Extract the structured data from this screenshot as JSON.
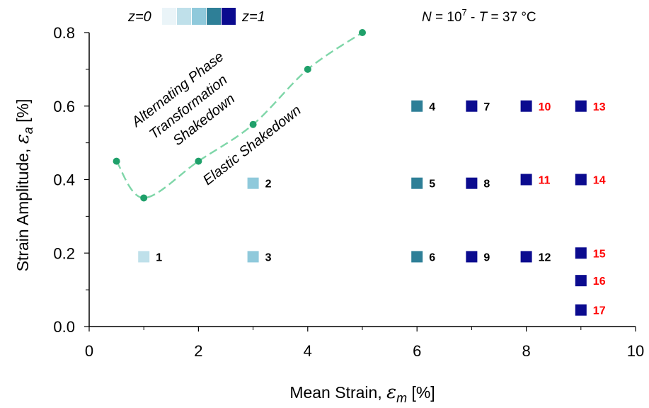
{
  "chart_data": {
    "type": "scatter",
    "title": "",
    "xlabel": "Mean Strain,",
    "xlabel_symbol": "ε",
    "xlabel_sub": "m",
    "xlabel_unit": "[%]",
    "ylabel": "Strain Amplitude,",
    "ylabel_symbol": "ε",
    "ylabel_sub": "a",
    "ylabel_unit": "[%]",
    "xlim": [
      0,
      10
    ],
    "ylim": [
      0,
      0.8
    ],
    "xticks": [
      "0",
      "2",
      "4",
      "6",
      "8",
      "10"
    ],
    "yticks": [
      "0.0",
      "0.2",
      "0.4",
      "0.6",
      "0.8"
    ],
    "grid": false,
    "boundary": {
      "color": "#7ed6a8",
      "marker_color": "#1fa06a",
      "style": "dashed",
      "points": [
        {
          "x": 0.5,
          "y": 0.45
        },
        {
          "x": 1,
          "y": 0.35
        },
        {
          "x": 2,
          "y": 0.45
        },
        {
          "x": 3,
          "y": 0.55
        },
        {
          "x": 4,
          "y": 0.7
        },
        {
          "x": 5,
          "y": 0.8
        }
      ]
    },
    "regions": {
      "upper": [
        "Alternating Phase",
        "Transformation",
        "Shakedown"
      ],
      "lower": "Elastic Shakedown"
    },
    "legend": {
      "label_start": "z=0",
      "label_end": "z=1",
      "colors": [
        "#eaf4f8",
        "#bfe0ea",
        "#8fc9db",
        "#2e7f97",
        "#0b0b8f"
      ]
    },
    "header": {
      "N_symbol": "N",
      "N_text": " = 10",
      "N_exp": "7",
      "separator": "  -  ",
      "T_symbol": "T",
      "T_text": " = 37 °C"
    },
    "points": [
      {
        "id": "1",
        "x": 1,
        "y": 0.19,
        "z": 0.2,
        "color": "#bfe0ea",
        "label_color": "#000000"
      },
      {
        "id": "2",
        "x": 3,
        "y": 0.39,
        "z": 0.4,
        "color": "#8fc9db",
        "label_color": "#000000"
      },
      {
        "id": "3",
        "x": 3,
        "y": 0.19,
        "z": 0.4,
        "color": "#8fc9db",
        "label_color": "#000000"
      },
      {
        "id": "4",
        "x": 6,
        "y": 0.6,
        "z": 0.7,
        "color": "#2e7f97",
        "label_color": "#000000"
      },
      {
        "id": "5",
        "x": 6,
        "y": 0.39,
        "z": 0.7,
        "color": "#2e7f97",
        "label_color": "#000000"
      },
      {
        "id": "6",
        "x": 6,
        "y": 0.19,
        "z": 0.7,
        "color": "#2e7f97",
        "label_color": "#000000"
      },
      {
        "id": "7",
        "x": 7,
        "y": 0.6,
        "z": 1.0,
        "color": "#0b0b8f",
        "label_color": "#000000"
      },
      {
        "id": "8",
        "x": 7,
        "y": 0.39,
        "z": 1.0,
        "color": "#0b0b8f",
        "label_color": "#000000"
      },
      {
        "id": "9",
        "x": 7,
        "y": 0.19,
        "z": 1.0,
        "color": "#0b0b8f",
        "label_color": "#000000"
      },
      {
        "id": "10",
        "x": 8,
        "y": 0.6,
        "z": 1.0,
        "color": "#0b0b8f",
        "label_color": "#ff0000"
      },
      {
        "id": "11",
        "x": 8,
        "y": 0.4,
        "z": 1.0,
        "color": "#0b0b8f",
        "label_color": "#ff0000"
      },
      {
        "id": "12",
        "x": 8,
        "y": 0.19,
        "z": 1.0,
        "color": "#0b0b8f",
        "label_color": "#000000"
      },
      {
        "id": "13",
        "x": 9,
        "y": 0.6,
        "z": 1.0,
        "color": "#0b0b8f",
        "label_color": "#ff0000"
      },
      {
        "id": "14",
        "x": 9,
        "y": 0.4,
        "z": 1.0,
        "color": "#0b0b8f",
        "label_color": "#ff0000"
      },
      {
        "id": "15",
        "x": 9,
        "y": 0.2,
        "z": 1.0,
        "color": "#0b0b8f",
        "label_color": "#ff0000"
      },
      {
        "id": "16",
        "x": 9,
        "y": 0.125,
        "z": 1.0,
        "color": "#0b0b8f",
        "label_color": "#ff0000"
      },
      {
        "id": "17",
        "x": 9,
        "y": 0.045,
        "z": 1.0,
        "color": "#0b0b8f",
        "label_color": "#ff0000"
      }
    ]
  }
}
